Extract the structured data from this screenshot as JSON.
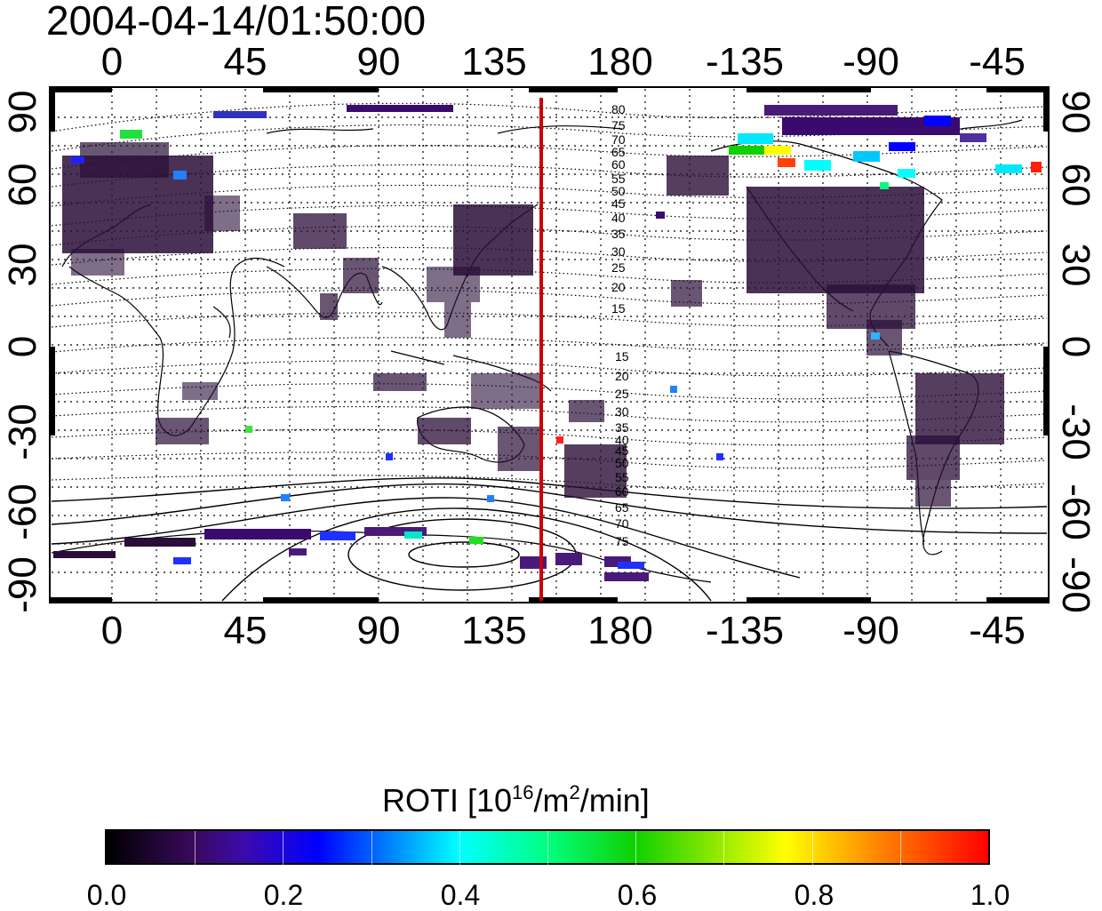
{
  "timestamp": "2004-04-14/01:50:00",
  "map": {
    "geo_lon_ticks": [
      "0",
      "45",
      "90",
      "135",
      "180",
      "-135",
      "-90",
      "-45"
    ],
    "geo_lat_ticks_left": [
      "90",
      "60",
      "30",
      "0",
      "-30",
      "-60",
      "-90"
    ],
    "geo_lat_ticks_right": [
      "90",
      "60",
      "30",
      "0",
      "-30",
      "-60",
      "-90"
    ],
    "mag_lat_labels_north": [
      "80",
      "75",
      "70",
      "65",
      "60",
      "55",
      "50",
      "45",
      "40",
      "35",
      "30",
      "25",
      "20",
      "15"
    ],
    "mag_lat_labels_south": [
      "15",
      "20",
      "25",
      "30",
      "35",
      "40",
      "45",
      "50",
      "55",
      "60",
      "65",
      "70",
      "75"
    ],
    "terminator_color": "#cc0000",
    "ocean_color": "#ffffff"
  },
  "colorbar": {
    "title_prefix": "ROTI  [10",
    "title_sup1": "16",
    "title_mid": "/m",
    "title_sup2": "2",
    "title_suffix": "/min]",
    "tick_labels": [
      "0.0",
      "0.2",
      "0.4",
      "0.6",
      "0.8",
      "1.0"
    ],
    "range": [
      0.0,
      1.0
    ]
  }
}
